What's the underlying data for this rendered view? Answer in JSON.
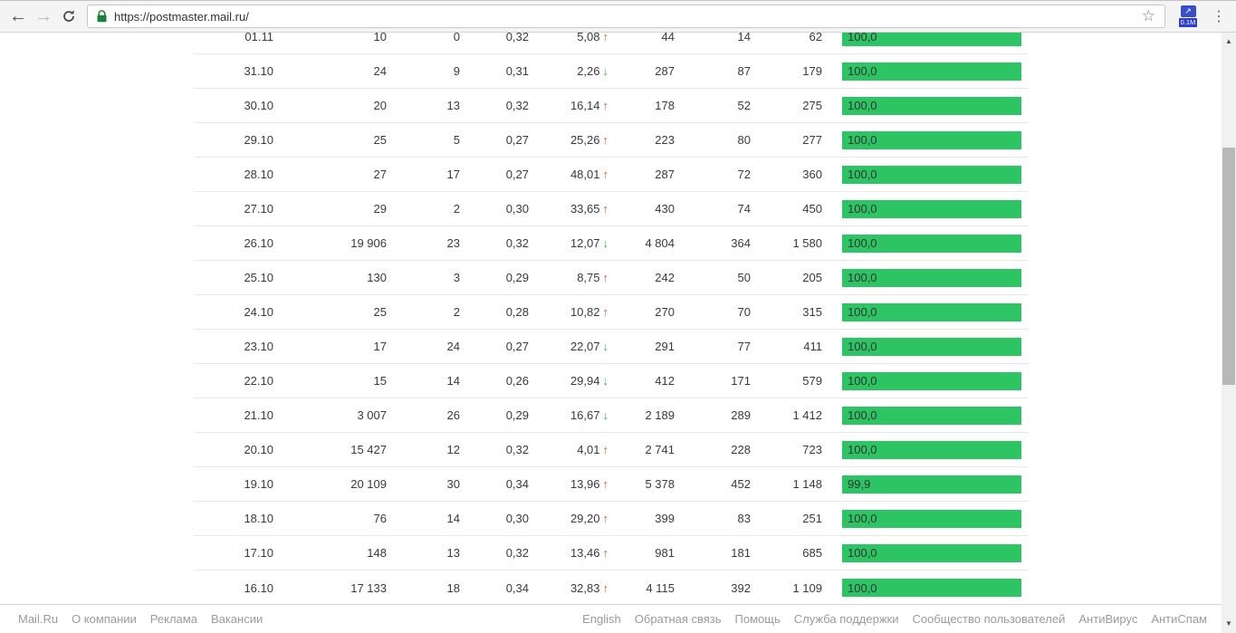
{
  "browser": {
    "url": "https://postmaster.mail.ru/",
    "extension_badge": "0.1M"
  },
  "icons": {
    "back": "←",
    "forward": "→",
    "menu": "⋮",
    "star": "☆",
    "ext_arrow": "↗",
    "trend_up": "↑",
    "trend_down": "↓",
    "scroll_up": "▲",
    "scroll_down": "▼"
  },
  "colors": {
    "bar": "#2dc464",
    "up": "#e8502c",
    "down": "#27b24b",
    "lock": "#188038"
  },
  "table": {
    "rows": [
      {
        "date": "01.11",
        "v1": "10",
        "v2": "0",
        "v3": "0,32",
        "pct": "5,08",
        "trend": "up",
        "v5": "44",
        "v6": "14",
        "v7": "62",
        "bar": "100,0"
      },
      {
        "date": "31.10",
        "v1": "24",
        "v2": "9",
        "v3": "0,31",
        "pct": "2,26",
        "trend": "down",
        "v5": "287",
        "v6": "87",
        "v7": "179",
        "bar": "100,0"
      },
      {
        "date": "30.10",
        "v1": "20",
        "v2": "13",
        "v3": "0,32",
        "pct": "16,14",
        "trend": "up",
        "v5": "178",
        "v6": "52",
        "v7": "275",
        "bar": "100,0"
      },
      {
        "date": "29.10",
        "v1": "25",
        "v2": "5",
        "v3": "0,27",
        "pct": "25,26",
        "trend": "up",
        "v5": "223",
        "v6": "80",
        "v7": "277",
        "bar": "100,0"
      },
      {
        "date": "28.10",
        "v1": "27",
        "v2": "17",
        "v3": "0,27",
        "pct": "48,01",
        "trend": "up",
        "v5": "287",
        "v6": "72",
        "v7": "360",
        "bar": "100,0"
      },
      {
        "date": "27.10",
        "v1": "29",
        "v2": "2",
        "v3": "0,30",
        "pct": "33,65",
        "trend": "up",
        "v5": "430",
        "v6": "74",
        "v7": "450",
        "bar": "100,0"
      },
      {
        "date": "26.10",
        "v1": "19 906",
        "v2": "23",
        "v3": "0,32",
        "pct": "12,07",
        "trend": "down",
        "v5": "4 804",
        "v6": "364",
        "v7": "1 580",
        "bar": "100,0"
      },
      {
        "date": "25.10",
        "v1": "130",
        "v2": "3",
        "v3": "0,29",
        "pct": "8,75",
        "trend": "up",
        "v5": "242",
        "v6": "50",
        "v7": "205",
        "bar": "100,0"
      },
      {
        "date": "24.10",
        "v1": "25",
        "v2": "2",
        "v3": "0,28",
        "pct": "10,82",
        "trend": "up",
        "v5": "270",
        "v6": "70",
        "v7": "315",
        "bar": "100,0"
      },
      {
        "date": "23.10",
        "v1": "17",
        "v2": "24",
        "v3": "0,27",
        "pct": "22,07",
        "trend": "down",
        "v5": "291",
        "v6": "77",
        "v7": "411",
        "bar": "100,0"
      },
      {
        "date": "22.10",
        "v1": "15",
        "v2": "14",
        "v3": "0,26",
        "pct": "29,94",
        "trend": "down",
        "v5": "412",
        "v6": "171",
        "v7": "579",
        "bar": "100,0"
      },
      {
        "date": "21.10",
        "v1": "3 007",
        "v2": "26",
        "v3": "0,29",
        "pct": "16,67",
        "trend": "down",
        "v5": "2 189",
        "v6": "289",
        "v7": "1 412",
        "bar": "100,0"
      },
      {
        "date": "20.10",
        "v1": "15 427",
        "v2": "12",
        "v3": "0,32",
        "pct": "4,01",
        "trend": "up",
        "v5": "2 741",
        "v6": "228",
        "v7": "723",
        "bar": "100,0"
      },
      {
        "date": "19.10",
        "v1": "20 109",
        "v2": "30",
        "v3": "0,34",
        "pct": "13,96",
        "trend": "up",
        "v5": "5 378",
        "v6": "452",
        "v7": "1 148",
        "bar": "99,9"
      },
      {
        "date": "18.10",
        "v1": "76",
        "v2": "14",
        "v3": "0,30",
        "pct": "29,20",
        "trend": "up",
        "v5": "399",
        "v6": "83",
        "v7": "251",
        "bar": "100,0"
      },
      {
        "date": "17.10",
        "v1": "148",
        "v2": "13",
        "v3": "0,32",
        "pct": "13,46",
        "trend": "up",
        "v5": "981",
        "v6": "181",
        "v7": "685",
        "bar": "100,0"
      },
      {
        "date": "16.10",
        "v1": "17 133",
        "v2": "18",
        "v3": "0,34",
        "pct": "32,83",
        "trend": "up",
        "v5": "4 115",
        "v6": "392",
        "v7": "1 109",
        "bar": "100,0"
      }
    ]
  },
  "footer": {
    "left": [
      "Mail.Ru",
      "О компании",
      "Реклама",
      "Вакансии"
    ],
    "right": [
      "English",
      "Обратная связь",
      "Помощь",
      "Служба поддержки",
      "Сообщество пользователей",
      "АнтиВирус",
      "АнтиСпам"
    ]
  }
}
